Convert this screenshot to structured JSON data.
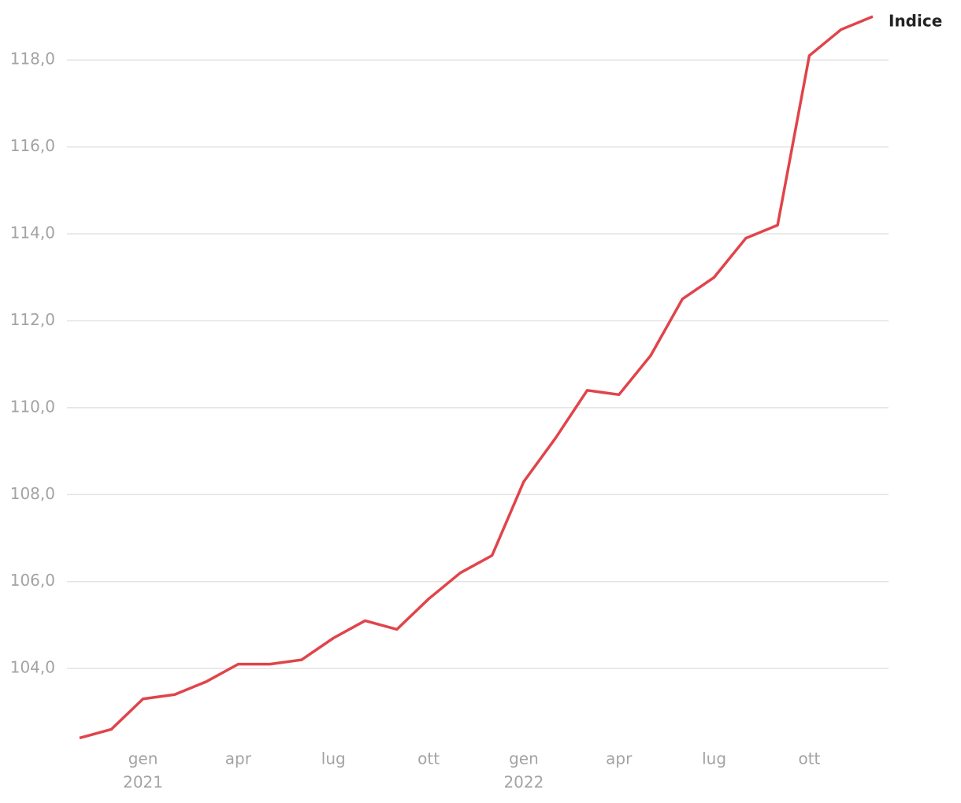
{
  "chart_data": {
    "type": "line",
    "categories": [
      null,
      null,
      "gen",
      null,
      null,
      "apr",
      null,
      null,
      "lug",
      null,
      null,
      "ott",
      null,
      null,
      "gen",
      null,
      null,
      "apr",
      null,
      null,
      "lug",
      null,
      null,
      "ott",
      null,
      null
    ],
    "category_years": [
      null,
      null,
      "2021",
      null,
      null,
      null,
      null,
      null,
      null,
      null,
      null,
      null,
      null,
      null,
      "2022",
      null,
      null,
      null,
      null,
      null,
      null,
      null,
      null,
      null,
      null,
      null
    ],
    "series": [
      {
        "name": "Indice",
        "color": "#e0444a",
        "values": [
          102.4,
          102.6,
          103.3,
          103.4,
          103.7,
          104.1,
          104.1,
          104.2,
          104.7,
          105.1,
          104.9,
          105.6,
          106.2,
          106.6,
          108.3,
          109.3,
          110.4,
          110.3,
          111.2,
          112.5,
          113.0,
          113.9,
          114.2,
          118.1,
          118.7,
          119.0
        ]
      }
    ],
    "ylim": [
      102.3,
      119.0
    ],
    "yticks": [
      {
        "value": 104,
        "label": "104,0"
      },
      {
        "value": 106,
        "label": "106,0"
      },
      {
        "value": 108,
        "label": "108,0"
      },
      {
        "value": 110,
        "label": "110,0"
      },
      {
        "value": 112,
        "label": "112,0"
      },
      {
        "value": 114,
        "label": "114,0"
      },
      {
        "value": 116,
        "label": "116,0"
      },
      {
        "value": 118,
        "label": "118,0"
      }
    ],
    "grid": true
  }
}
